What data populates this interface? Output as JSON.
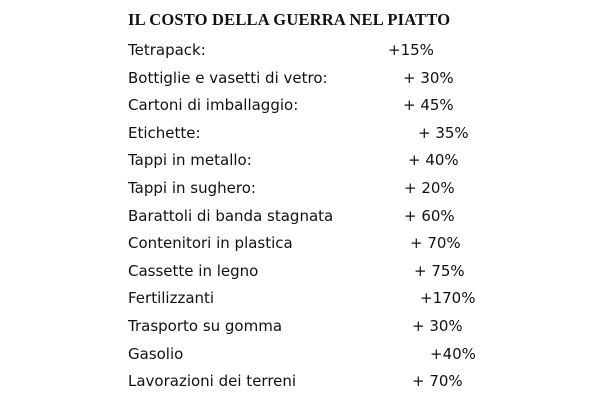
{
  "header": {
    "title": "IL COSTO DELLA GUERRA NEL PIATTO"
  },
  "table": {
    "rows": [
      [
        "Tetrapack:",
        "+15%"
      ],
      [
        "Bottiglie e vasetti di vetro:",
        "+ 30%"
      ],
      [
        "Cartoni di imballaggio:",
        "+ 45%"
      ],
      [
        "Etichette:",
        "+ 35%"
      ],
      [
        "Tappi in metallo:",
        "+ 40%"
      ],
      [
        "Tappi in sughero:",
        "+ 20%"
      ],
      [
        "Barattoli di banda stagnata",
        "+ 60%"
      ],
      [
        "Contenitori in plastica",
        "+ 70%"
      ],
      [
        "Cassette in legno",
        "+ 75%"
      ],
      [
        "Fertilizzanti",
        "+170%"
      ],
      [
        "Trasporto su gomma",
        "+ 30%"
      ],
      [
        "Gasolio",
        "+40%"
      ],
      [
        "Lavorazioni dei terreni",
        "+ 70%"
      ]
    ]
  }
}
